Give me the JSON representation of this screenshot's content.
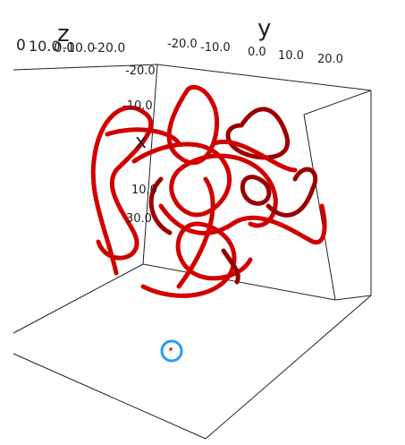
{
  "axes": {
    "z": {
      "label": "z",
      "ticks": [
        "0",
        "10.0",
        "0.0",
        "-10.0",
        "-20.0"
      ]
    },
    "y": {
      "label": "y",
      "ticks": [
        "-20.0",
        "-10.0",
        "0.0",
        "10.0",
        "20.0"
      ]
    },
    "x": {
      "label": "x",
      "ticks": [
        "-20.0",
        "-10.0",
        "10.0",
        "30.0"
      ]
    }
  }
}
